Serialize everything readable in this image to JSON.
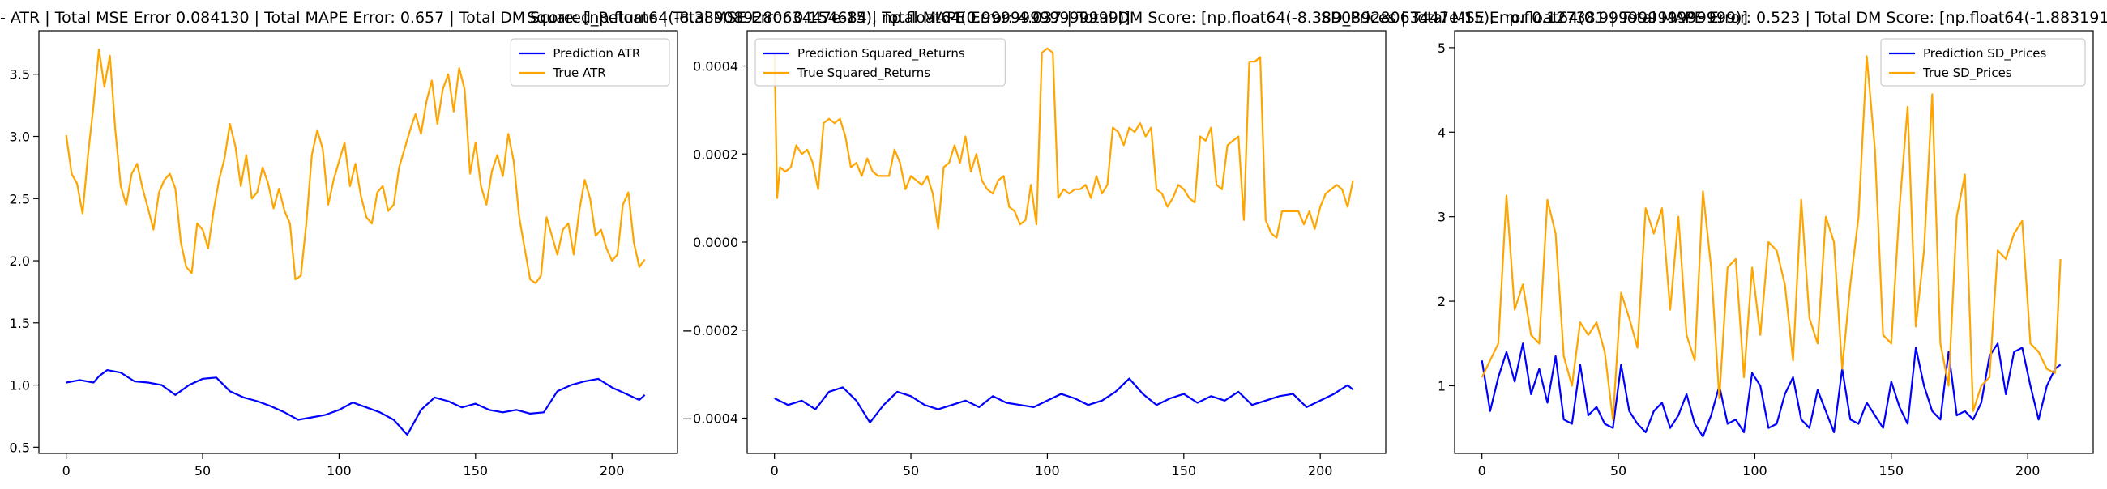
{
  "chart_data": [
    {
      "type": "line",
      "title": "- ATR | Total MSE Error 0.084130 | Total MAPE Error: 0.657 | Total DM Score: [np.float64(-8.38908928063447e-15), np.float64(0.99999999999999)]",
      "xlabel": "",
      "ylabel": "",
      "xlim": [
        -10,
        224
      ],
      "ylim": [
        0.45,
        3.85
      ],
      "xticks": [
        0,
        50,
        100,
        150,
        200
      ],
      "yticks": [
        0.5,
        1.0,
        1.5,
        2.0,
        2.5,
        3.0,
        3.5
      ],
      "ytick_labels": [
        "0.5",
        "1.0",
        "1.5",
        "2.0",
        "2.5",
        "3.0",
        "3.5"
      ],
      "legend_position": "upper right",
      "series": [
        {
          "name": "Prediction ATR",
          "color": "#0000ff",
          "x": [
            0,
            5,
            10,
            12,
            15,
            20,
            25,
            30,
            35,
            40,
            45,
            50,
            55,
            60,
            65,
            70,
            75,
            80,
            85,
            90,
            95,
            100,
            105,
            110,
            115,
            120,
            125,
            130,
            135,
            140,
            145,
            150,
            155,
            160,
            165,
            170,
            175,
            180,
            185,
            190,
            195,
            200,
            205,
            210,
            212
          ],
          "values": [
            1.02,
            1.04,
            1.02,
            1.07,
            1.12,
            1.1,
            1.03,
            1.02,
            1.0,
            0.92,
            1.0,
            1.05,
            1.06,
            0.95,
            0.9,
            0.87,
            0.83,
            0.78,
            0.72,
            0.74,
            0.76,
            0.8,
            0.86,
            0.82,
            0.78,
            0.72,
            0.6,
            0.8,
            0.9,
            0.87,
            0.82,
            0.85,
            0.8,
            0.78,
            0.8,
            0.77,
            0.78,
            0.95,
            1.0,
            1.03,
            1.05,
            0.98,
            0.93,
            0.88,
            0.92
          ]
        },
        {
          "name": "True ATR",
          "color": "#ffa500",
          "x": [
            0,
            2,
            4,
            6,
            8,
            10,
            12,
            14,
            16,
            18,
            20,
            22,
            24,
            26,
            28,
            30,
            32,
            34,
            36,
            38,
            40,
            42,
            44,
            46,
            48,
            50,
            52,
            54,
            56,
            58,
            60,
            62,
            64,
            66,
            68,
            70,
            72,
            74,
            76,
            78,
            80,
            82,
            84,
            86,
            88,
            90,
            92,
            94,
            96,
            98,
            100,
            102,
            104,
            106,
            108,
            110,
            112,
            114,
            116,
            118,
            120,
            122,
            124,
            126,
            128,
            130,
            132,
            134,
            136,
            138,
            140,
            142,
            144,
            146,
            148,
            150,
            152,
            154,
            156,
            158,
            160,
            162,
            164,
            166,
            168,
            170,
            172,
            174,
            176,
            178,
            180,
            182,
            184,
            186,
            188,
            190,
            192,
            194,
            196,
            198,
            200,
            202,
            204,
            206,
            208,
            210,
            212
          ],
          "values": [
            3.01,
            2.7,
            2.62,
            2.38,
            2.85,
            3.25,
            3.7,
            3.4,
            3.65,
            3.05,
            2.6,
            2.45,
            2.7,
            2.78,
            2.58,
            2.42,
            2.25,
            2.55,
            2.65,
            2.7,
            2.58,
            2.15,
            1.95,
            1.9,
            2.3,
            2.25,
            2.1,
            2.4,
            2.65,
            2.82,
            3.1,
            2.92,
            2.6,
            2.85,
            2.5,
            2.55,
            2.75,
            2.62,
            2.42,
            2.58,
            2.4,
            2.3,
            1.85,
            1.88,
            2.3,
            2.85,
            3.05,
            2.9,
            2.45,
            2.65,
            2.8,
            2.95,
            2.6,
            2.78,
            2.52,
            2.35,
            2.3,
            2.55,
            2.6,
            2.4,
            2.45,
            2.75,
            2.9,
            3.05,
            3.18,
            3.02,
            3.28,
            3.45,
            3.1,
            3.38,
            3.5,
            3.2,
            3.55,
            3.38,
            2.7,
            2.95,
            2.6,
            2.45,
            2.72,
            2.85,
            2.68,
            3.02,
            2.8,
            2.35,
            2.1,
            1.85,
            1.82,
            1.88,
            2.35,
            2.2,
            2.05,
            2.25,
            2.3,
            2.05,
            2.4,
            2.65,
            2.5,
            2.2,
            2.25,
            2.1,
            2.0,
            2.05,
            2.45,
            2.55,
            2.15,
            1.95,
            2.01
          ]
        }
      ]
    },
    {
      "type": "line",
      "title": "Squared_Returns | Total MSE Error 0.154684 | Total MAPE Error: 4.037 | Total DM Score: [np.float64(-8.38908928063447e-15), np.float64(0.99999999999999)]",
      "xlabel": "",
      "ylabel": "",
      "xlim": [
        -10,
        224
      ],
      "ylim": [
        -0.00048,
        0.00048
      ],
      "xticks": [
        0,
        50,
        100,
        150,
        200
      ],
      "yticks": [
        -0.0004,
        -0.0002,
        0.0,
        0.0002,
        0.0004
      ],
      "ytick_labels": [
        "−0.0004",
        "−0.0002",
        "0.0000",
        "0.0002",
        "0.0004"
      ],
      "legend_position": "upper left",
      "series": [
        {
          "name": "Prediction Squared_Returns",
          "color": "#0000ff",
          "x": [
            0,
            5,
            10,
            15,
            20,
            25,
            30,
            35,
            40,
            45,
            50,
            55,
            60,
            65,
            70,
            75,
            80,
            85,
            90,
            95,
            100,
            105,
            110,
            115,
            120,
            125,
            130,
            135,
            140,
            145,
            150,
            155,
            160,
            165,
            170,
            175,
            180,
            185,
            190,
            195,
            200,
            205,
            210,
            212
          ],
          "values": [
            -0.000355,
            -0.00037,
            -0.00036,
            -0.00038,
            -0.00034,
            -0.00033,
            -0.00036,
            -0.00041,
            -0.00037,
            -0.00034,
            -0.00035,
            -0.00037,
            -0.00038,
            -0.00037,
            -0.00036,
            -0.000375,
            -0.00035,
            -0.000365,
            -0.00037,
            -0.000375,
            -0.00036,
            -0.000345,
            -0.000355,
            -0.00037,
            -0.00036,
            -0.00034,
            -0.00031,
            -0.000345,
            -0.00037,
            -0.000355,
            -0.000345,
            -0.000365,
            -0.00035,
            -0.00036,
            -0.00034,
            -0.00037,
            -0.00036,
            -0.00035,
            -0.000345,
            -0.000375,
            -0.00036,
            -0.000345,
            -0.000325,
            -0.000335
          ]
        },
        {
          "name": "True Squared_Returns",
          "color": "#ffa500",
          "x": [
            0,
            1,
            2,
            4,
            6,
            8,
            10,
            12,
            14,
            16,
            18,
            20,
            22,
            24,
            26,
            28,
            30,
            32,
            34,
            36,
            38,
            40,
            42,
            44,
            46,
            48,
            50,
            52,
            54,
            56,
            58,
            60,
            62,
            64,
            66,
            68,
            70,
            72,
            74,
            76,
            78,
            80,
            82,
            84,
            86,
            88,
            90,
            92,
            94,
            96,
            98,
            100,
            102,
            104,
            106,
            108,
            110,
            112,
            114,
            116,
            118,
            120,
            122,
            124,
            126,
            128,
            130,
            132,
            134,
            136,
            138,
            140,
            142,
            144,
            146,
            148,
            150,
            152,
            154,
            156,
            158,
            160,
            162,
            164,
            166,
            168,
            170,
            172,
            174,
            176,
            178,
            180,
            182,
            184,
            186,
            188,
            190,
            192,
            194,
            196,
            198,
            200,
            202,
            204,
            206,
            208,
            210,
            212
          ],
          "values": [
            0.00043,
            0.0001,
            0.00017,
            0.00016,
            0.00017,
            0.00022,
            0.0002,
            0.00021,
            0.00018,
            0.00012,
            0.00027,
            0.00028,
            0.00027,
            0.00028,
            0.00024,
            0.00017,
            0.00018,
            0.00015,
            0.00019,
            0.00016,
            0.00015,
            0.00015,
            0.00015,
            0.00021,
            0.00018,
            0.00012,
            0.00015,
            0.00014,
            0.00013,
            0.00015,
            0.00011,
            3e-05,
            0.00017,
            0.00018,
            0.00022,
            0.00018,
            0.00024,
            0.00016,
            0.0002,
            0.00014,
            0.00012,
            0.00011,
            0.00014,
            0.00015,
            8e-05,
            7e-05,
            4e-05,
            5e-05,
            0.00013,
            4e-05,
            0.00043,
            0.00044,
            0.00043,
            0.0001,
            0.00012,
            0.00011,
            0.00012,
            0.00012,
            0.00013,
            0.0001,
            0.00015,
            0.00011,
            0.00013,
            0.00026,
            0.00025,
            0.00022,
            0.00026,
            0.00025,
            0.00027,
            0.00024,
            0.00026,
            0.00012,
            0.00011,
            8e-05,
            0.0001,
            0.00013,
            0.00012,
            0.0001,
            9e-05,
            0.00024,
            0.00023,
            0.00026,
            0.00013,
            0.00012,
            0.00022,
            0.00023,
            0.00024,
            5e-05,
            0.00041,
            0.00041,
            0.00042,
            5e-05,
            2e-05,
            1e-05,
            7e-05,
            7e-05,
            7e-05,
            7e-05,
            4e-05,
            7e-05,
            3e-05,
            8e-05,
            0.00011,
            0.00012,
            0.00013,
            0.00012,
            8e-05,
            0.00014
          ]
        }
      ]
    },
    {
      "type": "line",
      "title": "SD_Prices | Total MSE Error 0.127381 | Total MAPE Error: 0.523 | Total DM Score: [np.float64(-1.8831915055583342e-16), np.",
      "xlabel": "",
      "ylabel": "",
      "xlim": [
        -10,
        224
      ],
      "ylim": [
        0.2,
        5.2
      ],
      "xticks": [
        0,
        50,
        100,
        150,
        200
      ],
      "yticks": [
        1,
        2,
        3,
        4,
        5
      ],
      "ytick_labels": [
        "1",
        "2",
        "3",
        "4",
        "5"
      ],
      "legend_position": "upper right",
      "series": [
        {
          "name": "Prediction SD_Prices",
          "color": "#0000ff",
          "x": [
            0,
            3,
            6,
            9,
            12,
            15,
            18,
            21,
            24,
            27,
            30,
            33,
            36,
            39,
            42,
            45,
            48,
            51,
            54,
            57,
            60,
            63,
            66,
            69,
            72,
            75,
            78,
            81,
            84,
            87,
            90,
            93,
            96,
            99,
            102,
            105,
            108,
            111,
            114,
            117,
            120,
            123,
            126,
            129,
            132,
            135,
            138,
            141,
            144,
            147,
            150,
            153,
            156,
            159,
            162,
            165,
            168,
            171,
            174,
            177,
            180,
            183,
            186,
            189,
            192,
            195,
            198,
            201,
            204,
            207,
            210,
            212
          ],
          "values": [
            1.3,
            0.7,
            1.1,
            1.4,
            1.05,
            1.5,
            0.9,
            1.2,
            0.8,
            1.35,
            0.6,
            0.55,
            1.25,
            0.65,
            0.75,
            0.55,
            0.5,
            1.25,
            0.7,
            0.55,
            0.45,
            0.7,
            0.8,
            0.5,
            0.65,
            0.9,
            0.55,
            0.4,
            0.65,
            1.0,
            0.55,
            0.6,
            0.45,
            1.15,
            1.0,
            0.5,
            0.55,
            0.9,
            1.1,
            0.6,
            0.5,
            0.95,
            0.7,
            0.45,
            1.2,
            0.6,
            0.55,
            0.8,
            0.65,
            0.5,
            1.05,
            0.75,
            0.55,
            1.45,
            1.0,
            0.7,
            0.6,
            1.4,
            0.65,
            0.7,
            0.6,
            0.8,
            1.35,
            1.5,
            0.9,
            1.4,
            1.45,
            1.0,
            0.6,
            1.0,
            1.2,
            1.25
          ]
        },
        {
          "name": "True SD_Prices",
          "color": "#ffa500",
          "x": [
            0,
            3,
            6,
            9,
            12,
            15,
            18,
            21,
            24,
            27,
            30,
            33,
            36,
            39,
            42,
            45,
            48,
            51,
            54,
            57,
            60,
            63,
            66,
            69,
            72,
            75,
            78,
            81,
            84,
            87,
            90,
            93,
            96,
            99,
            102,
            105,
            108,
            111,
            114,
            117,
            120,
            123,
            126,
            129,
            132,
            135,
            138,
            141,
            144,
            147,
            150,
            153,
            156,
            159,
            162,
            165,
            168,
            171,
            174,
            177,
            180,
            183,
            186,
            189,
            192,
            195,
            198,
            201,
            204,
            207,
            210,
            212
          ],
          "values": [
            1.1,
            1.3,
            1.5,
            3.25,
            1.9,
            2.2,
            1.6,
            1.5,
            3.2,
            2.8,
            1.35,
            1.0,
            1.75,
            1.6,
            1.75,
            1.4,
            0.6,
            2.1,
            1.8,
            1.45,
            3.1,
            2.8,
            3.1,
            1.9,
            3.0,
            1.6,
            1.3,
            3.3,
            2.4,
            0.85,
            2.4,
            2.5,
            1.1,
            2.4,
            1.6,
            2.7,
            2.6,
            2.2,
            1.3,
            3.2,
            1.8,
            1.5,
            3.0,
            2.7,
            1.2,
            2.2,
            3.0,
            4.9,
            3.8,
            1.6,
            1.5,
            3.1,
            4.3,
            1.7,
            2.6,
            4.45,
            1.5,
            1.0,
            3.0,
            3.5,
            0.7,
            1.0,
            1.1,
            2.6,
            2.5,
            2.8,
            2.95,
            1.5,
            1.4,
            1.2,
            1.15,
            2.5
          ]
        }
      ]
    }
  ]
}
